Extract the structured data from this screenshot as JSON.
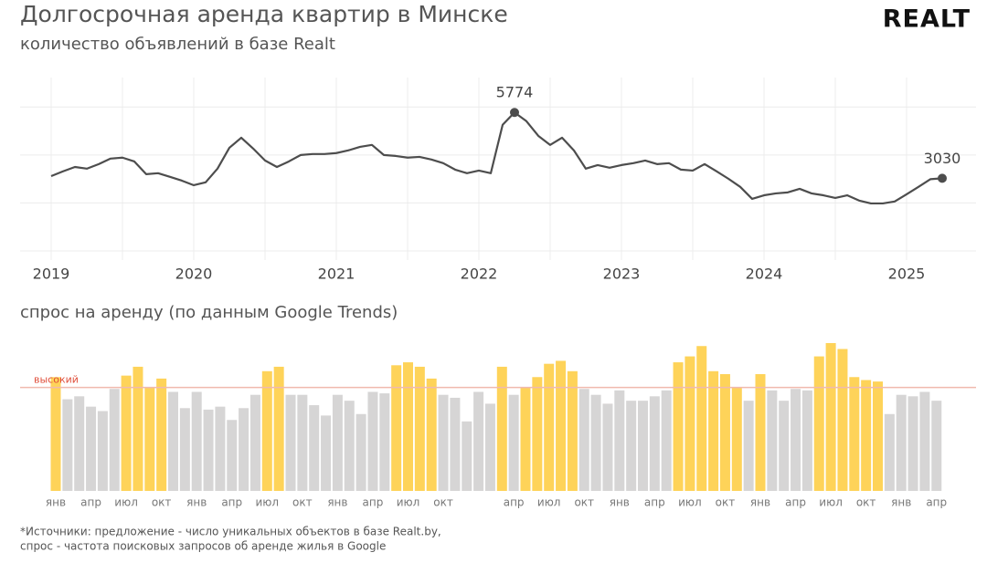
{
  "logo": "REALT",
  "footnote": [
    "*Источники: предложение - число уникальных объектов в базе Realt.by,",
    "спрос - частота поисковых запросов об аренде жилья в Google"
  ],
  "chart_data": [
    {
      "type": "line",
      "title": "Долгосрочная аренда квартир в Минске",
      "subtitle": "количество объявлений в базе Realt",
      "categories": [
        "2019",
        null,
        null,
        null,
        null,
        null,
        null,
        null,
        null,
        null,
        null,
        null,
        "2020",
        null,
        null,
        null,
        null,
        null,
        null,
        null,
        null,
        null,
        null,
        null,
        "2021",
        null,
        null,
        null,
        null,
        null,
        null,
        null,
        null,
        null,
        null,
        null,
        "2022",
        null,
        null,
        null,
        null,
        null,
        null,
        null,
        null,
        null,
        null,
        null,
        "2023",
        null,
        null,
        null,
        null,
        null,
        null,
        null,
        null,
        null,
        null,
        null,
        "2024",
        null,
        null,
        null,
        null,
        null,
        null,
        null,
        null,
        null,
        null,
        null,
        "2025",
        null,
        null,
        null
      ],
      "series": [
        {
          "color": "#4d4d4d",
          "values": [
            3120,
            3320,
            3500,
            3430,
            3620,
            3850,
            3890,
            3730,
            3200,
            3240,
            3090,
            2930,
            2740,
            2860,
            3430,
            4300,
            4720,
            4270,
            3770,
            3500,
            3730,
            4000,
            4040,
            4040,
            4080,
            4190,
            4340,
            4420,
            4000,
            3960,
            3890,
            3920,
            3810,
            3660,
            3390,
            3240,
            3350,
            3240,
            5260,
            5774,
            5410,
            4800,
            4420,
            4720,
            4190,
            3430,
            3580,
            3470,
            3580,
            3660,
            3770,
            3620,
            3660,
            3390,
            3350,
            3620,
            3320,
            3010,
            2670,
            2170,
            2320,
            2400,
            2440,
            2590,
            2400,
            2320,
            2210,
            2320,
            2100,
            1980,
            1980,
            2060,
            2360,
            2670,
            2990,
            3030
          ]
        }
      ],
      "data_labels": [
        39,
        75
      ],
      "ylim": [
        0,
        7000
      ],
      "yticks": [
        0,
        2000,
        4000,
        6000
      ],
      "grid": true
    },
    {
      "type": "bar",
      "title": "спрос на аренду (по данным Google Trends)",
      "categories": [
        "янв",
        null,
        null,
        "апр",
        null,
        null,
        "июл",
        null,
        null,
        "окт",
        null,
        null,
        "янв",
        null,
        null,
        "апр",
        null,
        null,
        "июл",
        null,
        null,
        "окт",
        null,
        null,
        "янв",
        null,
        null,
        "апр",
        null,
        null,
        "июл",
        null,
        null,
        "окт",
        null,
        null,
        null,
        null,
        null,
        "апр",
        null,
        null,
        "июл",
        null,
        null,
        "окт",
        null,
        null,
        "янв",
        null,
        null,
        "апр",
        null,
        null,
        "июл",
        null,
        null,
        "окт",
        null,
        null,
        "янв",
        null,
        null,
        "апр",
        null,
        null,
        "июл",
        null,
        null,
        "окт",
        null,
        null,
        "янв",
        null,
        null,
        "апр"
      ],
      "values": [
        77,
        62,
        64,
        57,
        54,
        69,
        78,
        84,
        70,
        76,
        67,
        56,
        67,
        55,
        57,
        48,
        56,
        65,
        81,
        84,
        65,
        65,
        58,
        51,
        65,
        61,
        52,
        67,
        66,
        85,
        87,
        84,
        76,
        65,
        63,
        47,
        67,
        59,
        84,
        65,
        70,
        77,
        86,
        88,
        81,
        69,
        65,
        59,
        68,
        61,
        61,
        64,
        68,
        87,
        91,
        98,
        81,
        79,
        70,
        61,
        79,
        68,
        61,
        69,
        68,
        91,
        100,
        96,
        77,
        75,
        74,
        52,
        65,
        64,
        67,
        61
      ],
      "color": "#d6d5d5",
      "highlight_color": "#fed359",
      "threshold": {
        "value": 70,
        "label": "высокий",
        "color": "#f0b9ae",
        "label_color": "#e0503c"
      },
      "ylim": [
        0,
        100
      ]
    }
  ]
}
